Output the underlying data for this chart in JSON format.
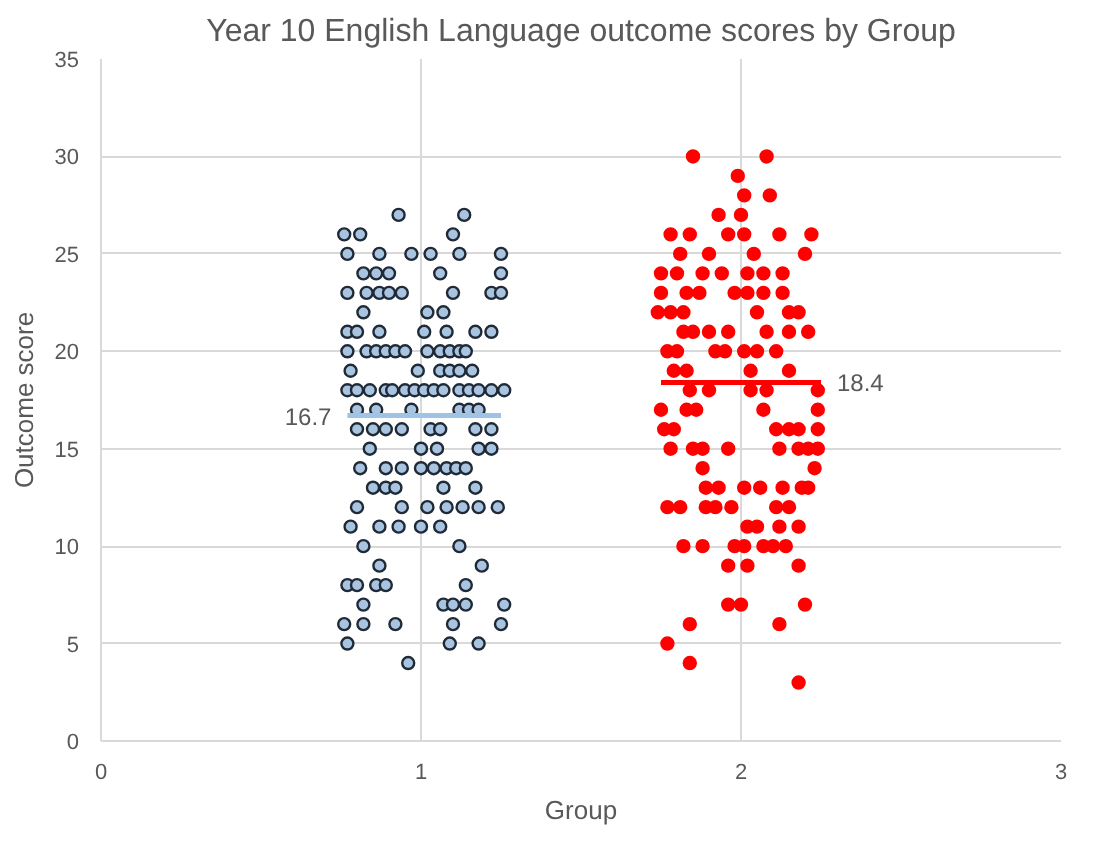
{
  "chart_data": {
    "type": "scatter",
    "title": "Year 10 English Language outcome scores by Group",
    "xlabel": "Group",
    "ylabel": "Outcome score",
    "xlim": [
      0,
      3
    ],
    "xticks": [
      0,
      1,
      2,
      3
    ],
    "ylim": [
      0,
      35
    ],
    "yticks": [
      0,
      5,
      10,
      15,
      20,
      25,
      30,
      35
    ],
    "grid": true,
    "marker": "circle",
    "series": [
      {
        "color": "#a9c4e0",
        "x": [
          0.93,
          1.135,
          0.76,
          0.81,
          1.1,
          0.77,
          0.87,
          0.97,
          1.03,
          1.12,
          1.25,
          0.82,
          0.86,
          0.9,
          1.06,
          1.25,
          0.77,
          0.83,
          0.87,
          0.9,
          0.94,
          1.1,
          1.22,
          1.25,
          0.82,
          1.02,
          1.07,
          0.77,
          0.8,
          0.87,
          1.01,
          1.08,
          1.17,
          1.22,
          0.77,
          0.83,
          0.86,
          0.89,
          0.92,
          0.95,
          1.02,
          1.06,
          1.09,
          1.12,
          1.14,
          0.78,
          0.99,
          1.06,
          1.09,
          1.12,
          1.16,
          0.77,
          0.8,
          0.84,
          0.89,
          0.91,
          0.95,
          0.98,
          1.01,
          1.04,
          1.07,
          1.12,
          1.15,
          1.18,
          1.22,
          1.26,
          0.8,
          0.86,
          0.97,
          1.12,
          1.15,
          1.18,
          0.8,
          0.85,
          0.89,
          0.94,
          1.03,
          1.06,
          1.17,
          1.22,
          0.84,
          1.0,
          1.05,
          1.18,
          1.22,
          0.81,
          0.89,
          0.94,
          1.0,
          1.04,
          1.08,
          1.11,
          1.14,
          0.85,
          0.89,
          0.92,
          1.07,
          1.17,
          0.8,
          0.94,
          1.02,
          1.08,
          1.13,
          1.18,
          1.24,
          0.78,
          0.87,
          0.93,
          1.0,
          1.06,
          0.82,
          1.12,
          0.87,
          1.19,
          0.77,
          0.8,
          0.86,
          0.89,
          1.14,
          0.82,
          1.07,
          1.1,
          1.14,
          1.26,
          0.76,
          0.82,
          0.92,
          1.1,
          1.25,
          0.77,
          1.09,
          1.18,
          0.96
        ],
        "values": [
          27,
          27,
          26,
          26,
          26,
          25,
          25,
          25,
          25,
          25,
          25,
          24,
          24,
          24,
          24,
          24,
          23,
          23,
          23,
          23,
          23,
          23,
          23,
          23,
          22,
          22,
          22,
          21,
          21,
          21,
          21,
          21,
          21,
          21,
          20,
          20,
          20,
          20,
          20,
          20,
          20,
          20,
          20,
          20,
          20,
          19,
          19,
          19,
          19,
          19,
          19,
          18,
          18,
          18,
          18,
          18,
          18,
          18,
          18,
          18,
          18,
          18,
          18,
          18,
          18,
          18,
          17,
          17,
          17,
          17,
          17,
          17,
          16,
          16,
          16,
          16,
          16,
          16,
          16,
          16,
          15,
          15,
          15,
          15,
          15,
          14,
          14,
          14,
          14,
          14,
          14,
          14,
          14,
          13,
          13,
          13,
          13,
          13,
          12,
          12,
          12,
          12,
          12,
          12,
          12,
          11,
          11,
          11,
          11,
          11,
          10,
          10,
          9,
          9,
          8,
          8,
          8,
          8,
          8,
          7,
          7,
          7,
          7,
          7,
          6,
          6,
          6,
          6,
          6,
          5,
          5,
          5,
          4
        ]
      },
      {
        "color": "#ff0000",
        "x": [
          1.85,
          2.08,
          1.99,
          2.01,
          2.09,
          1.93,
          2.0,
          1.78,
          1.84,
          1.96,
          2.01,
          2.12,
          2.22,
          1.81,
          1.9,
          2.04,
          2.2,
          1.75,
          1.8,
          1.88,
          1.94,
          2.02,
          2.07,
          2.13,
          1.75,
          1.83,
          1.87,
          1.98,
          2.02,
          2.07,
          2.13,
          1.74,
          1.78,
          1.82,
          2.05,
          2.15,
          2.18,
          1.82,
          1.85,
          1.9,
          1.96,
          2.08,
          2.15,
          2.21,
          1.77,
          1.8,
          1.92,
          1.95,
          2.01,
          2.05,
          2.11,
          1.79,
          1.83,
          2.03,
          2.15,
          1.84,
          1.9,
          2.03,
          2.08,
          2.24,
          1.75,
          1.83,
          1.86,
          2.07,
          2.24,
          1.76,
          1.79,
          2.11,
          2.15,
          2.18,
          2.24,
          1.78,
          1.85,
          1.88,
          1.96,
          2.12,
          2.18,
          2.21,
          2.24,
          1.88,
          2.23,
          1.89,
          1.93,
          2.01,
          2.06,
          2.13,
          2.19,
          2.21,
          1.77,
          1.81,
          1.89,
          1.92,
          1.97,
          2.11,
          2.15,
          2.02,
          2.05,
          2.12,
          2.18,
          1.82,
          1.88,
          1.98,
          2.01,
          2.07,
          2.1,
          2.14,
          1.96,
          2.02,
          2.18,
          1.96,
          2.0,
          2.2,
          1.84,
          2.12,
          1.77,
          1.84,
          2.18
        ],
        "values": [
          30,
          30,
          29,
          28,
          28,
          27,
          27,
          26,
          26,
          26,
          26,
          26,
          26,
          25,
          25,
          25,
          25,
          24,
          24,
          24,
          24,
          24,
          24,
          24,
          23,
          23,
          23,
          23,
          23,
          23,
          23,
          22,
          22,
          22,
          22,
          22,
          22,
          21,
          21,
          21,
          21,
          21,
          21,
          21,
          20,
          20,
          20,
          20,
          20,
          20,
          20,
          19,
          19,
          19,
          19,
          18,
          18,
          18,
          18,
          18,
          17,
          17,
          17,
          17,
          17,
          16,
          16,
          16,
          16,
          16,
          16,
          15,
          15,
          15,
          15,
          15,
          15,
          15,
          15,
          14,
          14,
          13,
          13,
          13,
          13,
          13,
          13,
          13,
          12,
          12,
          12,
          12,
          12,
          12,
          12,
          11,
          11,
          11,
          11,
          10,
          10,
          10,
          10,
          10,
          10,
          10,
          9,
          9,
          9,
          7,
          7,
          7,
          6,
          6,
          5,
          4,
          3
        ]
      },
      {
        "type": "line",
        "marker": "none",
        "color": "#9dc3e6",
        "x": [
          0.77,
          1.25
        ],
        "values": [
          16.7,
          16.7
        ]
      },
      {
        "type": "line",
        "marker": "none",
        "color": "#ff0000",
        "x": [
          1.75,
          2.25
        ],
        "values": [
          18.4,
          18.4
        ]
      }
    ],
    "annotations": [
      {
        "text": "16.7",
        "x": 0.77,
        "y": 16.7
      },
      {
        "text": "18.4",
        "x": 2.25,
        "y": 18.4
      }
    ]
  }
}
